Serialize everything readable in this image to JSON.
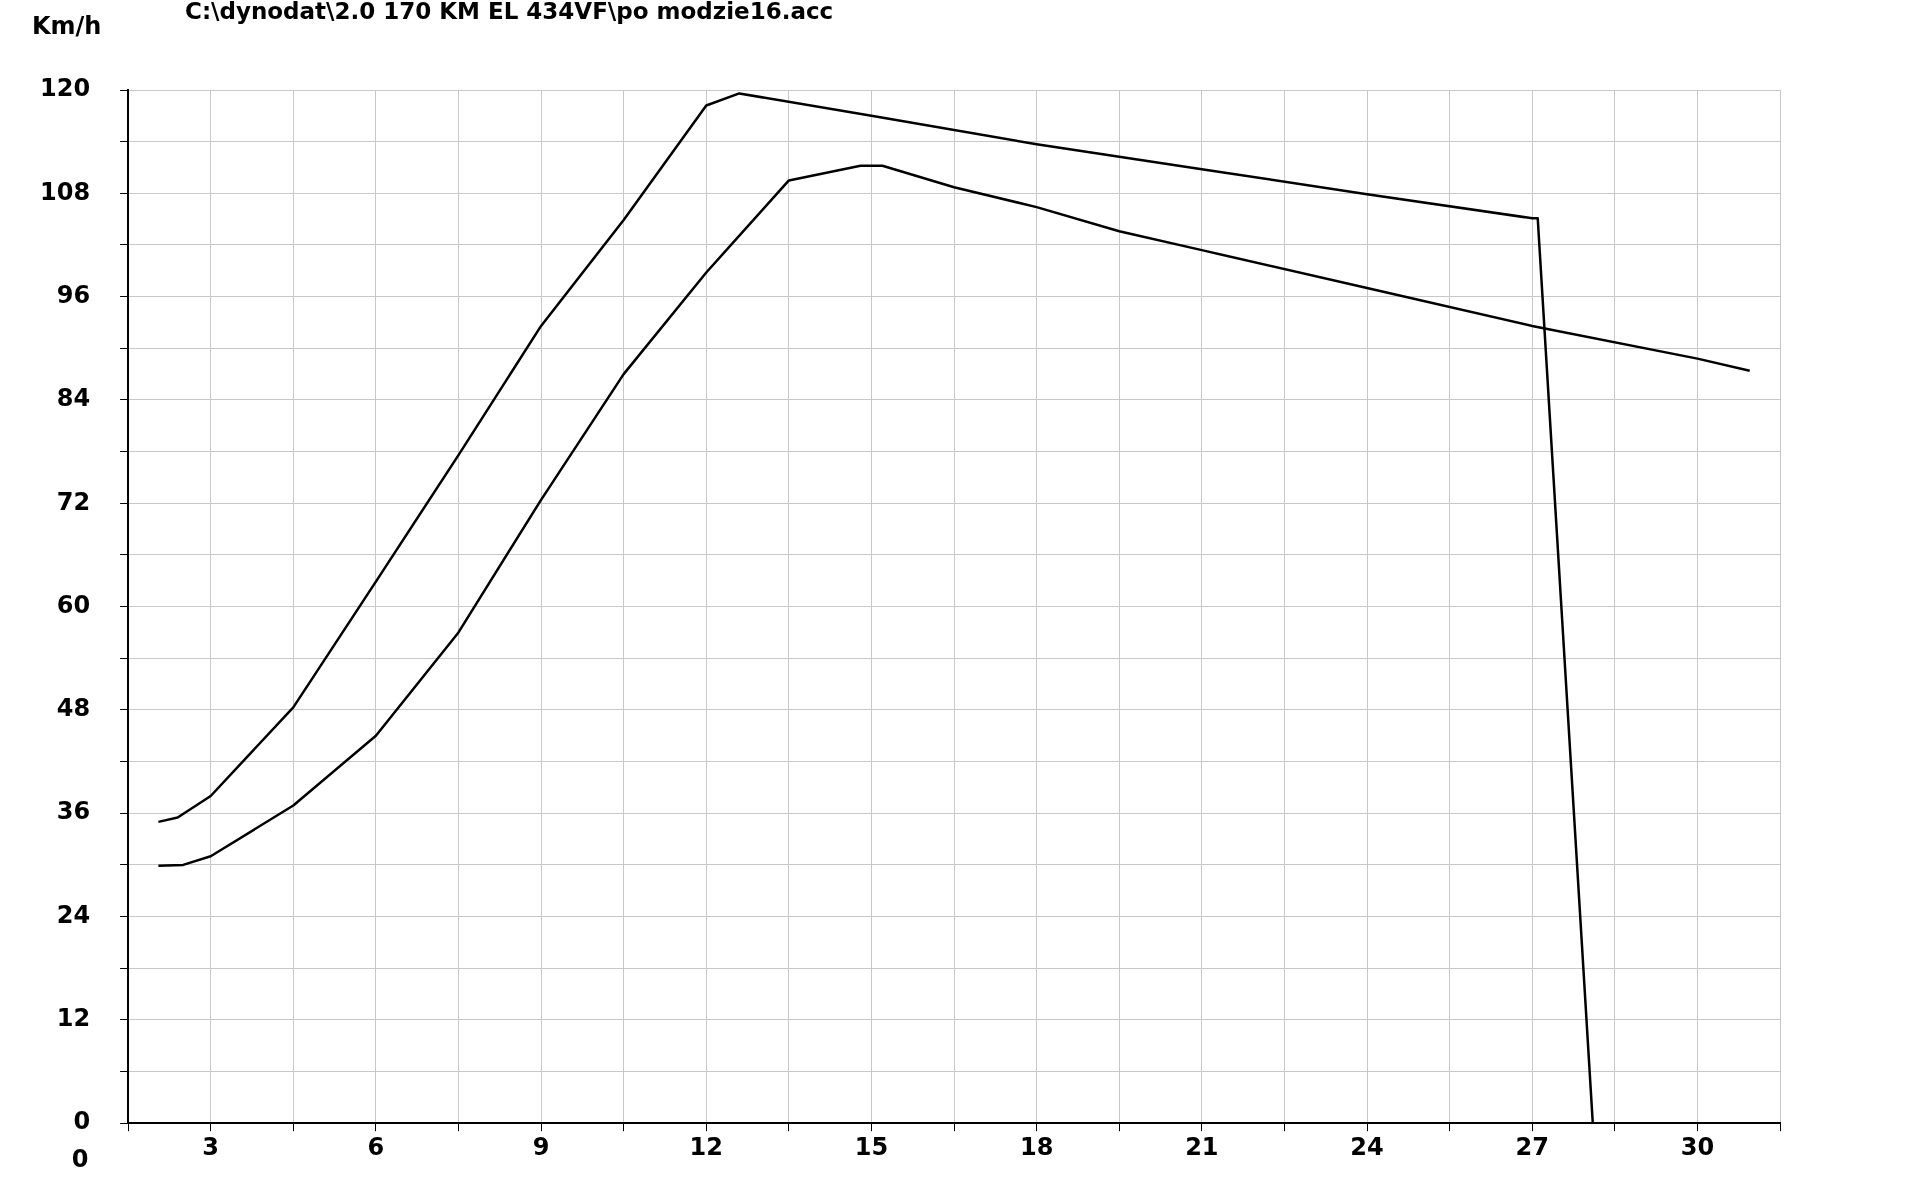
{
  "chart_data": {
    "type": "line",
    "title": "C:\\dynodat\\2.0 170 KM EL 434VF\\po modzie16.acc",
    "ylabel": "Km/h",
    "annotations": [
      "0"
    ],
    "xlim": [
      1.5,
      31.5
    ],
    "xticks": [
      {
        "value": 1.5,
        "label": null
      },
      3,
      {
        "value": 4.5,
        "label": null
      },
      6,
      {
        "value": 7.5,
        "label": null
      },
      9,
      {
        "value": 10.5,
        "label": null
      },
      12,
      {
        "value": 13.5,
        "label": null
      },
      15,
      {
        "value": 16.5,
        "label": null
      },
      18,
      {
        "value": 19.5,
        "label": null
      },
      21,
      {
        "value": 22.5,
        "label": null
      },
      24,
      {
        "value": 25.5,
        "label": null
      },
      27,
      {
        "value": 28.5,
        "label": null
      },
      30,
      {
        "value": 31.5,
        "label": null
      }
    ],
    "ylim": [
      0,
      120
    ],
    "yticks": [
      0,
      {
        "value": 6,
        "label": null
      },
      12,
      {
        "value": 18,
        "label": null
      },
      24,
      {
        "value": 30,
        "label": null
      },
      36,
      {
        "value": 42,
        "label": null
      },
      48,
      {
        "value": 54,
        "label": null
      },
      60,
      {
        "value": 66,
        "label": null
      },
      72,
      {
        "value": 78,
        "label": null
      },
      84,
      {
        "value": 90,
        "label": null
      },
      96,
      {
        "value": 102,
        "label": null
      },
      108,
      {
        "value": 114,
        "label": null
      },
      120
    ],
    "grid": true,
    "legend": false,
    "marker": "none",
    "line_style": "solid",
    "series": [
      {
        "color": "#000000",
        "x": [
          2.05,
          2.4,
          3,
          4.5,
          6,
          7.5,
          9,
          10.5,
          12,
          12.6,
          15,
          18,
          21,
          24,
          27,
          27.1,
          28.1
        ],
        "values": [
          35,
          35.5,
          38,
          48.3,
          62.9,
          77.6,
          92.6,
          104.9,
          118.2,
          119.6,
          117,
          113.7,
          110.8,
          107.9,
          105.1,
          105.1,
          0
        ]
      },
      {
        "color": "#000000",
        "x": [
          2.05,
          2.5,
          3,
          4.5,
          6,
          7.5,
          9,
          10.5,
          12,
          13.5,
          14.8,
          15.2,
          16.5,
          18,
          19.5,
          21,
          24,
          27,
          30,
          30.95
        ],
        "values": [
          29.9,
          30,
          31,
          36.9,
          45,
          57,
          72.4,
          87,
          98.8,
          109.5,
          111.2,
          111.2,
          108.7,
          106.4,
          103.6,
          101.4,
          97,
          92.6,
          88.8,
          87.4
        ]
      }
    ]
  }
}
